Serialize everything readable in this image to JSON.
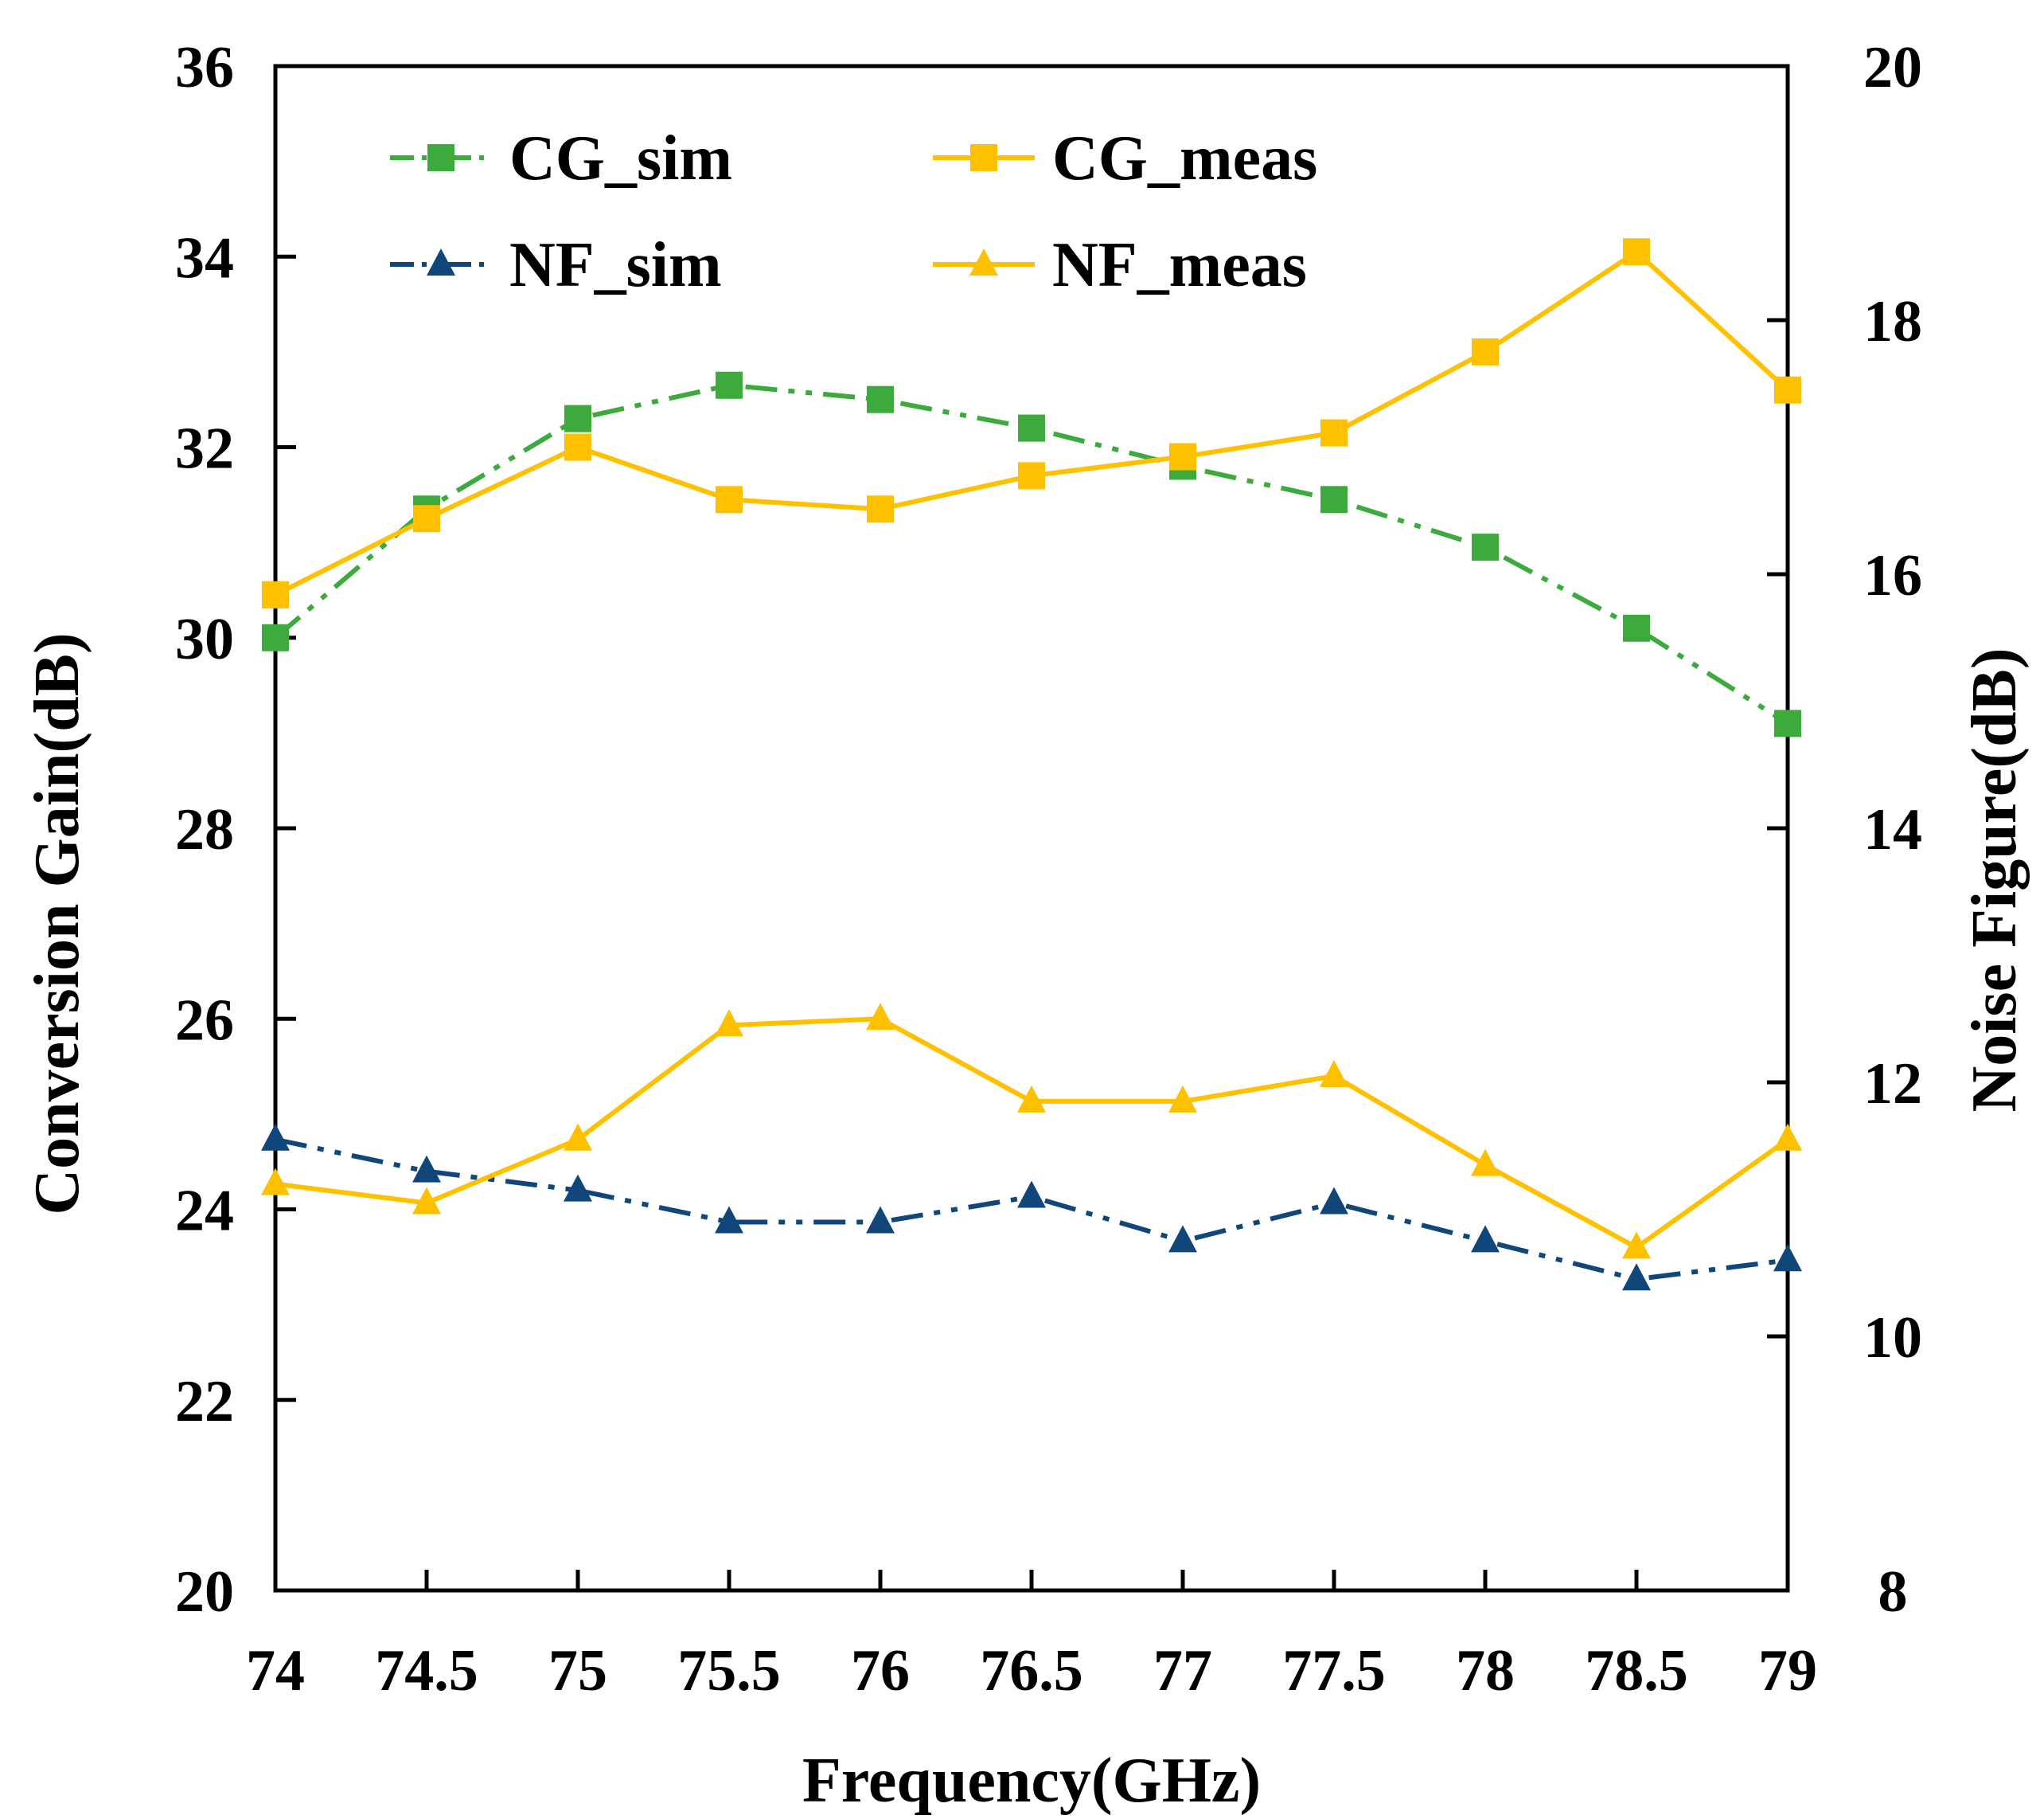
{
  "chart_data": {
    "type": "line",
    "title": "",
    "xlabel": "Frequency(GHz)",
    "ylabel": "Conversion Gain(dB)",
    "y2label": "Noise Figure(dB)",
    "x": [
      74,
      74.5,
      75,
      75.5,
      76,
      76.5,
      77,
      77.5,
      78,
      78.5,
      79
    ],
    "x_tick_labels": [
      "74",
      "74.5",
      "75",
      "75.5",
      "76",
      "76.5",
      "77",
      "77.5",
      "78",
      "78.5",
      "79"
    ],
    "xlim": [
      74,
      79
    ],
    "ylim": [
      20,
      36
    ],
    "y_ticks": [
      20,
      22,
      24,
      26,
      28,
      30,
      32,
      34,
      36
    ],
    "y_tick_labels": [
      "20",
      "22",
      "24",
      "26",
      "28",
      "30",
      "32",
      "34",
      "36"
    ],
    "y2lim": [
      8,
      20
    ],
    "y2_ticks": [
      8,
      10,
      12,
      14,
      16,
      18,
      20
    ],
    "y2_tick_labels": [
      "8",
      "10",
      "12",
      "14",
      "16",
      "18",
      "20"
    ],
    "grid": false,
    "legend_position": "top",
    "series": [
      {
        "name": "CG_sim",
        "axis": "left",
        "marker": "square",
        "line": "dash-dot-dot",
        "color": "#3daa3d",
        "values": [
          30.0,
          31.35,
          32.3,
          32.65,
          32.5,
          32.2,
          31.8,
          31.45,
          30.95,
          30.1,
          29.1
        ]
      },
      {
        "name": "CG_meas",
        "axis": "left",
        "marker": "square",
        "line": "solid",
        "color": "#ffc000",
        "values": [
          30.45,
          31.25,
          32.0,
          31.45,
          31.35,
          31.7,
          31.9,
          32.15,
          33.0,
          34.05,
          32.6
        ]
      },
      {
        "name": "NF_sim",
        "axis": "right",
        "marker": "triangle",
        "line": "dash-dot-dot",
        "color": "#10467a",
        "values": [
          11.55,
          11.3,
          11.15,
          10.9,
          10.9,
          11.1,
          10.75,
          11.05,
          10.75,
          10.45,
          10.6
        ]
      },
      {
        "name": "NF_meas",
        "axis": "right",
        "marker": "triangle",
        "line": "solid",
        "color": "#ffc000",
        "values": [
          11.2,
          11.05,
          11.55,
          12.45,
          12.5,
          11.85,
          11.85,
          12.05,
          11.35,
          10.7,
          11.55
        ]
      }
    ]
  }
}
